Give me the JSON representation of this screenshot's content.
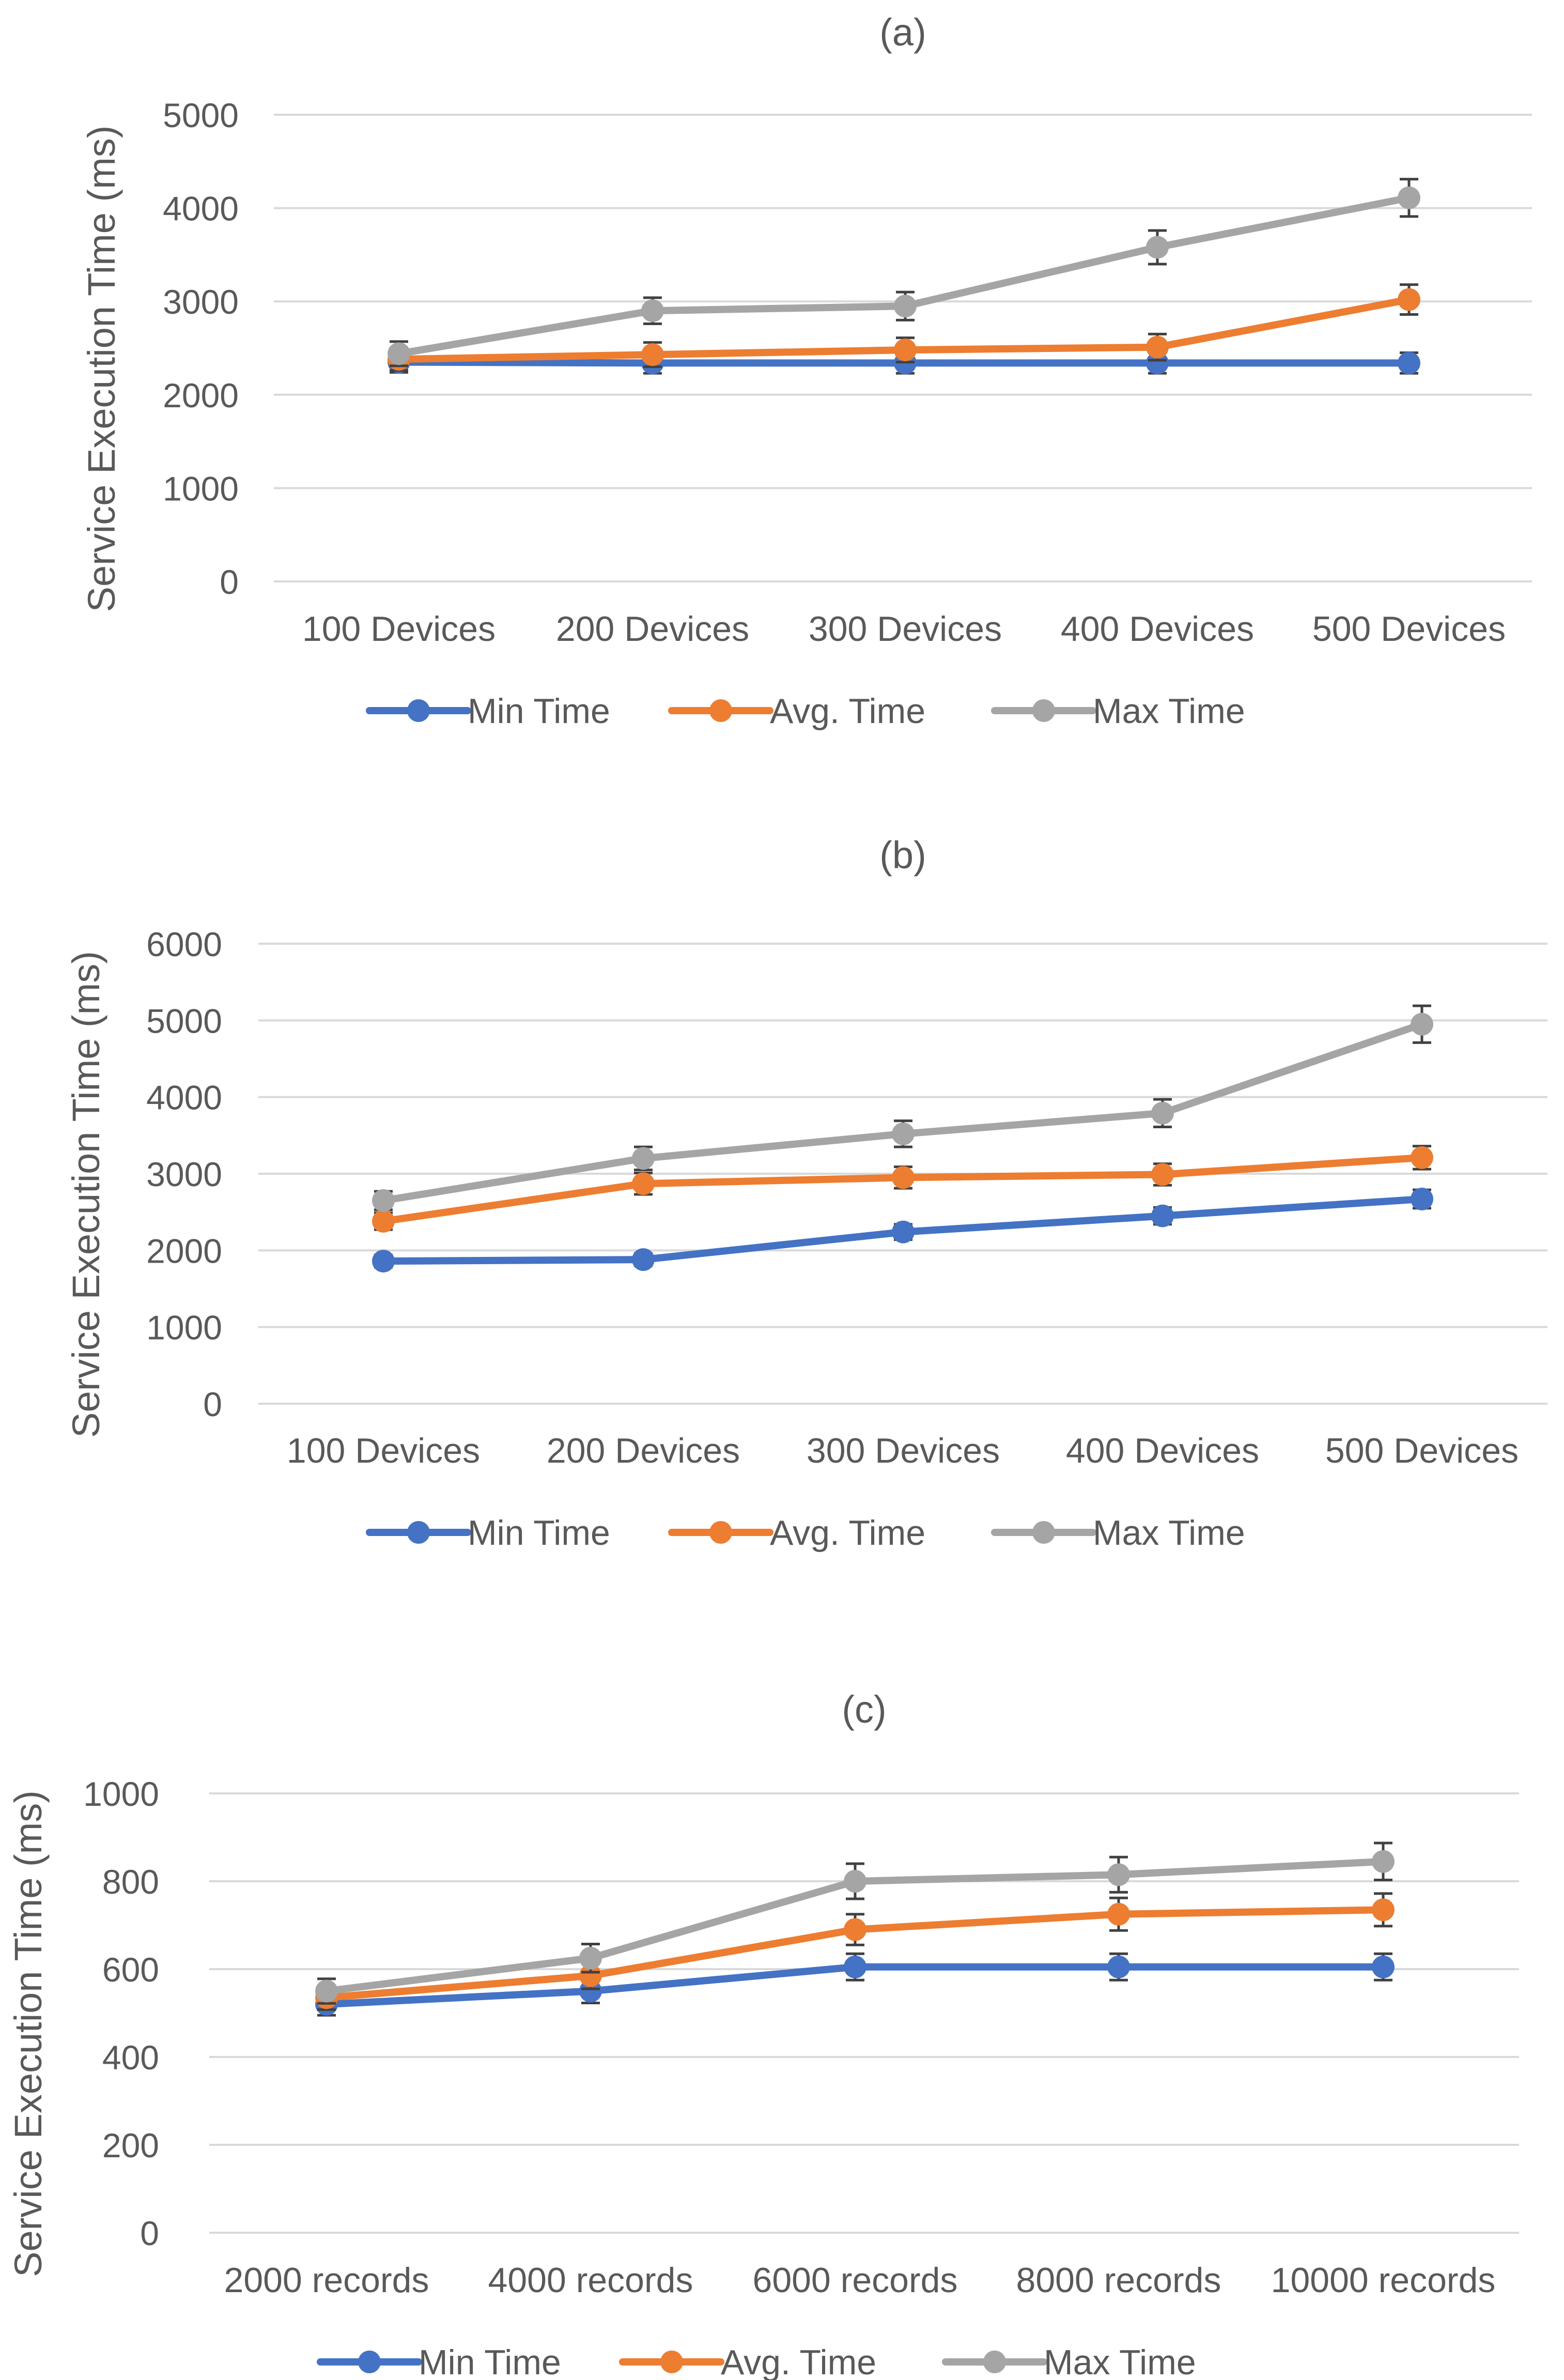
{
  "colors": {
    "min": "#4472C4",
    "avg": "#ED7D31",
    "max": "#A5A5A5",
    "grid": "#D9D9D9",
    "text": "#595959",
    "errorbar": "#404040"
  },
  "chart_data": [
    {
      "type": "line",
      "title": "(a)",
      "xlabel": "",
      "ylabel": "Service Execution Time (ms)",
      "ylim": [
        0,
        5000
      ],
      "yticks": [
        0,
        1000,
        2000,
        3000,
        4000,
        5000
      ],
      "categories": [
        "100 Devices",
        "200 Devices",
        "300 Devices",
        "400 Devices",
        "500 Devices"
      ],
      "legend_position": "bottom",
      "series": [
        {
          "name": "Min Time",
          "color": "#4472C4",
          "values": [
            2350,
            2340,
            2340,
            2340,
            2340
          ],
          "errors": [
            110,
            110,
            110,
            110,
            110
          ]
        },
        {
          "name": "Avg. Time",
          "color": "#ED7D31",
          "values": [
            2380,
            2430,
            2480,
            2510,
            3020
          ],
          "errors": [
            120,
            130,
            130,
            140,
            160
          ]
        },
        {
          "name": "Max Time",
          "color": "#A5A5A5",
          "values": [
            2440,
            2900,
            2950,
            3580,
            4110
          ],
          "errors": [
            130,
            140,
            150,
            180,
            200
          ]
        }
      ]
    },
    {
      "type": "line",
      "title": "(b)",
      "xlabel": "",
      "ylabel": "Service Execution Time (ms)",
      "ylim": [
        0,
        6000
      ],
      "yticks": [
        0,
        1000,
        2000,
        3000,
        4000,
        5000,
        6000
      ],
      "categories": [
        "100 Devices",
        "200 Devices",
        "300 Devices",
        "400 Devices",
        "500 Devices"
      ],
      "legend_position": "bottom",
      "series": [
        {
          "name": "Min Time",
          "color": "#4472C4",
          "values": [
            1860,
            1880,
            2240,
            2450,
            2670
          ],
          "errors": [
            80,
            80,
            100,
            110,
            120
          ]
        },
        {
          "name": "Avg. Time",
          "color": "#ED7D31",
          "values": [
            2380,
            2870,
            2950,
            2990,
            3210
          ],
          "errors": [
            110,
            140,
            140,
            140,
            150
          ]
        },
        {
          "name": "Max Time",
          "color": "#A5A5A5",
          "values": [
            2650,
            3200,
            3520,
            3790,
            4950
          ],
          "errors": [
            120,
            150,
            170,
            180,
            240
          ]
        }
      ]
    },
    {
      "type": "line",
      "title": "(c)",
      "xlabel": "",
      "ylabel": "Service Execution Time (ms)",
      "ylim": [
        0,
        1000
      ],
      "yticks": [
        0,
        200,
        400,
        600,
        800,
        1000
      ],
      "categories": [
        "2000 records",
        "4000 records",
        "6000 records",
        "8000 records",
        "10000 records"
      ],
      "legend_position": "bottom",
      "series": [
        {
          "name": "Min Time",
          "color": "#4472C4",
          "values": [
            520,
            550,
            605,
            605,
            605
          ],
          "errors": [
            25,
            27,
            30,
            30,
            30
          ]
        },
        {
          "name": "Avg. Time",
          "color": "#ED7D31",
          "values": [
            535,
            585,
            690,
            725,
            735
          ],
          "errors": [
            27,
            30,
            35,
            37,
            37
          ]
        },
        {
          "name": "Max Time",
          "color": "#A5A5A5",
          "values": [
            550,
            625,
            800,
            815,
            845
          ],
          "errors": [
            28,
            32,
            40,
            40,
            42
          ]
        }
      ]
    }
  ]
}
